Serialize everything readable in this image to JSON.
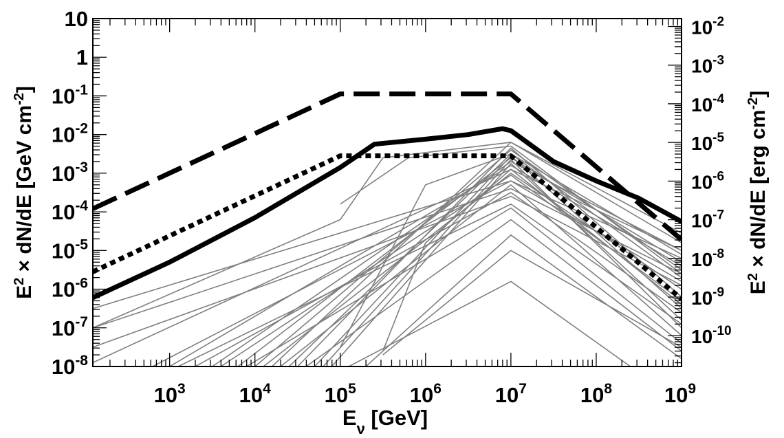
{
  "chart_data": {
    "type": "line",
    "scale": "log-log",
    "xlabel": {
      "base": "E",
      "sub": "ν",
      "unit": " [GeV]"
    },
    "ylabel_left": {
      "pre": "E",
      "sup1": "2",
      "mid": " × dN/dE [GeV cm",
      "sup2": "-2",
      "post": "]"
    },
    "ylabel_right": {
      "pre": "E",
      "sup1": "2",
      "mid": " × dN/dE [erg cm",
      "sup2": "-2",
      "post": "]"
    },
    "xlim_log10": [
      2.1,
      9.0
    ],
    "ylim_log10": [
      -8,
      1
    ],
    "right_axis_offset_log10": -2.796,
    "x_ticks": [
      {
        "base": "10",
        "exp": "3",
        "log": 3
      },
      {
        "base": "10",
        "exp": "4",
        "log": 4
      },
      {
        "base": "10",
        "exp": "5",
        "log": 5
      },
      {
        "base": "10",
        "exp": "6",
        "log": 6
      },
      {
        "base": "10",
        "exp": "7",
        "log": 7
      },
      {
        "base": "10",
        "exp": "8",
        "log": 8
      },
      {
        "base": "10",
        "exp": "9",
        "log": 9
      }
    ],
    "y_ticks_left": [
      {
        "base": "10",
        "exp": "",
        "log": 1
      },
      {
        "base": "1",
        "exp": "",
        "log": 0
      },
      {
        "base": "10",
        "exp": "-1",
        "log": -1
      },
      {
        "base": "10",
        "exp": "-2",
        "log": -2
      },
      {
        "base": "10",
        "exp": "-3",
        "log": -3
      },
      {
        "base": "10",
        "exp": "-4",
        "log": -4
      },
      {
        "base": "10",
        "exp": "-5",
        "log": -5
      },
      {
        "base": "10",
        "exp": "-6",
        "log": -6
      },
      {
        "base": "10",
        "exp": "-7",
        "log": -7
      },
      {
        "base": "10",
        "exp": "-8",
        "log": -8
      }
    ],
    "y_ticks_right": [
      {
        "base": "10",
        "exp": "-2",
        "log": -2
      },
      {
        "base": "10",
        "exp": "-3",
        "log": -3
      },
      {
        "base": "10",
        "exp": "-4",
        "log": -4
      },
      {
        "base": "10",
        "exp": "-5",
        "log": -5
      },
      {
        "base": "10",
        "exp": "-6",
        "log": -6
      },
      {
        "base": "10",
        "exp": "-7",
        "log": -7
      },
      {
        "base": "10",
        "exp": "-8",
        "log": -8
      },
      {
        "base": "10",
        "exp": "-9",
        "log": -9
      },
      {
        "base": "10",
        "exp": "-10",
        "log": -10
      }
    ],
    "series": [
      {
        "name": "dashed",
        "color": "#000000",
        "style": "dashed",
        "x": [
          2.1,
          5.0,
          7.0,
          9.0
        ],
        "y": [
          -3.92,
          -0.95,
          -0.95,
          -4.72
        ]
      },
      {
        "name": "solid",
        "color": "#000000",
        "style": "solid",
        "x": [
          2.1,
          3.0,
          4.0,
          5.0,
          5.4,
          6.0,
          6.5,
          6.9,
          7.0,
          7.5,
          8.0,
          8.5,
          9.0
        ],
        "y": [
          -6.22,
          -5.3,
          -4.15,
          -2.85,
          -2.25,
          -2.12,
          -2.0,
          -1.85,
          -1.9,
          -2.7,
          -3.2,
          -3.65,
          -4.25
        ]
      },
      {
        "name": "dotted",
        "color": "#000000",
        "style": "dotted",
        "x": [
          2.1,
          5.0,
          7.0,
          9.0
        ],
        "y": [
          -5.55,
          -2.55,
          -2.55,
          -6.25
        ]
      }
    ],
    "thin_lines": [
      {
        "x": [
          2.1,
          7.0,
          9.0
        ],
        "y": [
          -6.5,
          -3.2,
          -5.2
        ]
      },
      {
        "x": [
          2.1,
          7.0,
          9.0
        ],
        "y": [
          -7.0,
          -3.4,
          -5.6
        ]
      },
      {
        "x": [
          2.1,
          7.0,
          9.0
        ],
        "y": [
          -7.5,
          -3.6,
          -5.9
        ]
      },
      {
        "x": [
          2.1,
          7.0,
          9.0
        ],
        "y": [
          -7.9,
          -2.9,
          -5.0
        ]
      },
      {
        "x": [
          3.8,
          7.0,
          9.0
        ],
        "y": [
          -8.0,
          -2.6,
          -5.3
        ]
      },
      {
        "x": [
          3.5,
          7.0,
          9.0
        ],
        "y": [
          -8.0,
          -2.7,
          -5.0
        ]
      },
      {
        "x": [
          3.0,
          7.0,
          9.0
        ],
        "y": [
          -8.0,
          -2.8,
          -5.4
        ]
      },
      {
        "x": [
          2.8,
          7.0,
          9.0
        ],
        "y": [
          -8.0,
          -3.2,
          -5.8
        ]
      },
      {
        "x": [
          4.0,
          7.0,
          9.0
        ],
        "y": [
          -8.0,
          -2.4,
          -5.5
        ]
      },
      {
        "x": [
          4.2,
          7.0,
          9.0
        ],
        "y": [
          -8.0,
          -2.2,
          -4.8
        ]
      },
      {
        "x": [
          4.5,
          7.0,
          9.0
        ],
        "y": [
          -8.0,
          -2.35,
          -6.2
        ]
      },
      {
        "x": [
          4.7,
          7.0,
          9.0
        ],
        "y": [
          -8.0,
          -2.55,
          -6.5
        ]
      },
      {
        "x": [
          4.1,
          7.0,
          9.0
        ],
        "y": [
          -8.0,
          -3.0,
          -6.0
        ]
      },
      {
        "x": [
          3.3,
          7.0,
          9.0
        ],
        "y": [
          -8.0,
          -3.5,
          -6.6
        ]
      },
      {
        "x": [
          3.1,
          7.0,
          9.0
        ],
        "y": [
          -8.0,
          -3.8,
          -6.9
        ]
      },
      {
        "x": [
          4.9,
          7.0,
          9.0
        ],
        "y": [
          -8.0,
          -2.75,
          -6.8
        ]
      },
      {
        "x": [
          4.3,
          7.0,
          9.0
        ],
        "y": [
          -8.0,
          -3.3,
          -7.2
        ]
      },
      {
        "x": [
          3.9,
          7.0,
          9.0
        ],
        "y": [
          -8.0,
          -3.9,
          -7.4
        ]
      },
      {
        "x": [
          4.6,
          7.0,
          9.0
        ],
        "y": [
          -8.0,
          -4.2,
          -7.6
        ]
      },
      {
        "x": [
          5.3,
          7.0,
          9.0
        ],
        "y": [
          -8.0,
          -4.6,
          -7.8
        ]
      },
      {
        "x": [
          5.1,
          7.0,
          8.4
        ],
        "y": [
          -8.0,
          -5.8,
          -8.0
        ]
      },
      {
        "x": [
          4.4,
          7.0,
          9.0
        ],
        "y": [
          -8.0,
          -2.5,
          -5.7
        ]
      },
      {
        "x": [
          3.6,
          7.0,
          9.0
        ],
        "y": [
          -8.0,
          -3.05,
          -6.3
        ]
      },
      {
        "x": [
          4.8,
          7.0,
          9.0
        ],
        "y": [
          -8.0,
          -2.65,
          -7.0
        ]
      },
      {
        "x": [
          5.0,
          6.0,
          7.0,
          9.0
        ],
        "y": [
          -7.5,
          -3.3,
          -2.5,
          -5.1
        ]
      },
      {
        "x": [
          5.5,
          6.0,
          7.0,
          9.0
        ],
        "y": [
          -7.6,
          -4.8,
          -2.9,
          -6.4
        ]
      },
      {
        "x": [
          2.1,
          5.0,
          5.5,
          7.0,
          9.0
        ],
        "y": [
          -7.0,
          -4.2,
          -2.6,
          -2.2,
          -4.55
        ]
      },
      {
        "x": [
          5.0,
          5.8,
          7.0,
          9.0
        ],
        "y": [
          -3.8,
          -2.6,
          -2.3,
          -5.6
        ]
      },
      {
        "x": [
          5.5,
          7.0,
          9.0
        ],
        "y": [
          -7.7,
          -5.0,
          -7.5
        ]
      }
    ]
  }
}
